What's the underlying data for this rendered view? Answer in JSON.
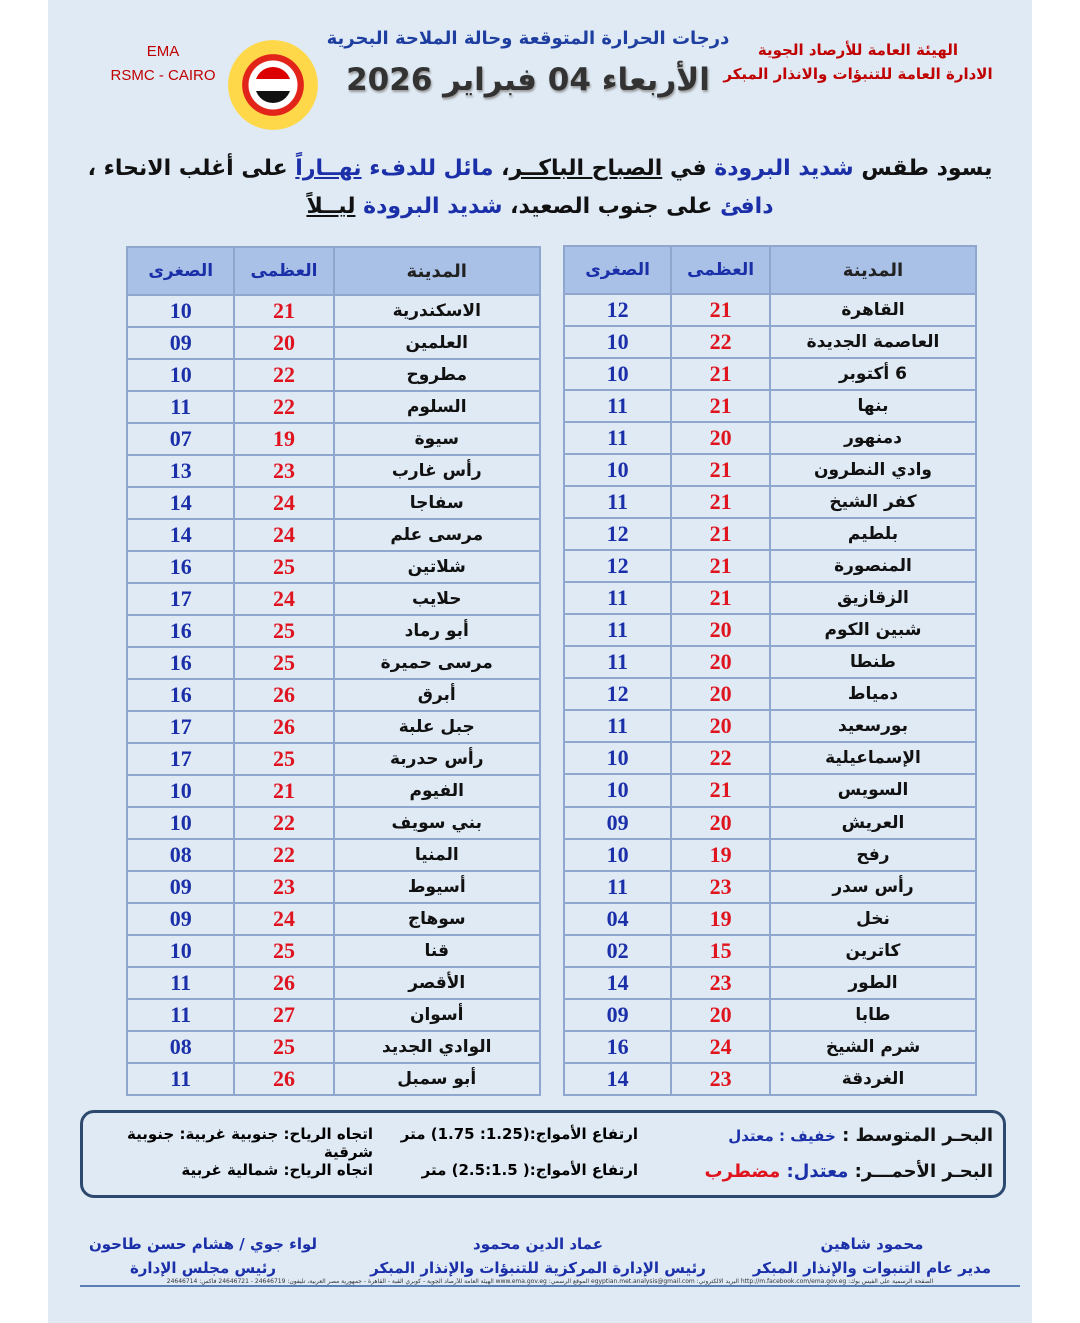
{
  "header": {
    "ema": "EMA",
    "rsmc": "RSMC - CAIRO",
    "title": "درجات الحرارة المتوقعة وحالة الملاحة البحرية",
    "date": "الأربعاء 04 فبراير 2026",
    "org1": "الهيئة العامة للأرصاد الجوية",
    "org2": "الادارة العامة للتنبؤات والانذار المبكر"
  },
  "summary": {
    "p1": "يسود طقس ",
    "p2": "شديد البرودة",
    "p3": " في ",
    "p4": "الصباح الباكــر",
    "p5": "، ",
    "p6": "مائل للدفء",
    "p7": " ",
    "p8": "نهــاراً",
    "p9": " على أغلب الانحاء ،",
    "p10": "دافئ",
    "p11": " على جنوب الصعيد، ",
    "p12": "شديد البرودة",
    "p13": " ",
    "p14": "ليــلاً"
  },
  "columns": {
    "city": "المدينة",
    "max": "العظمى",
    "min": "الصغرى"
  },
  "table_right": [
    [
      "القاهرة",
      "21",
      "12"
    ],
    [
      "العاصمة الجديدة",
      "22",
      "10"
    ],
    [
      "6 أكتوبر",
      "21",
      "10"
    ],
    [
      "بنها",
      "21",
      "11"
    ],
    [
      "دمنهور",
      "20",
      "11"
    ],
    [
      "وادي النطرون",
      "21",
      "10"
    ],
    [
      "كفر الشيخ",
      "21",
      "11"
    ],
    [
      "بلطيم",
      "21",
      "12"
    ],
    [
      "المنصورة",
      "21",
      "12"
    ],
    [
      "الزقازيق",
      "21",
      "11"
    ],
    [
      "شبين الكوم",
      "20",
      "11"
    ],
    [
      "طنطا",
      "20",
      "11"
    ],
    [
      "دمياط",
      "20",
      "12"
    ],
    [
      "بورسعيد",
      "20",
      "11"
    ],
    [
      "الإسماعيلية",
      "22",
      "10"
    ],
    [
      "السويس",
      "21",
      "10"
    ],
    [
      "العريش",
      "20",
      "09"
    ],
    [
      "رفح",
      "19",
      "10"
    ],
    [
      "رأس سدر",
      "23",
      "11"
    ],
    [
      "نخل",
      "19",
      "04"
    ],
    [
      "كاترين",
      "15",
      "02"
    ],
    [
      "الطور",
      "23",
      "14"
    ],
    [
      "طابا",
      "20",
      "09"
    ],
    [
      "شرم الشيخ",
      "24",
      "16"
    ],
    [
      "الغردقة",
      "23",
      "14"
    ]
  ],
  "table_left": [
    [
      "الاسكندرية",
      "21",
      "10"
    ],
    [
      "العلمين",
      "20",
      "09"
    ],
    [
      "مطروح",
      "22",
      "10"
    ],
    [
      "السلوم",
      "22",
      "11"
    ],
    [
      "سيوة",
      "19",
      "07"
    ],
    [
      "رأس غارب",
      "23",
      "13"
    ],
    [
      "سفاجا",
      "24",
      "14"
    ],
    [
      "مرسى علم",
      "24",
      "14"
    ],
    [
      "شلاتين",
      "25",
      "16"
    ],
    [
      "حلايب",
      "24",
      "17"
    ],
    [
      "أبو رماد",
      "25",
      "16"
    ],
    [
      "مرسى حميرة",
      "25",
      "16"
    ],
    [
      "أبرق",
      "26",
      "16"
    ],
    [
      "جبل علبة",
      "26",
      "17"
    ],
    [
      "رأس حدربة",
      "25",
      "17"
    ],
    [
      "الفيوم",
      "21",
      "10"
    ],
    [
      "بني سويف",
      "22",
      "10"
    ],
    [
      "المنيا",
      "22",
      "08"
    ],
    [
      "أسيوط",
      "23",
      "09"
    ],
    [
      "سوهاج",
      "24",
      "09"
    ],
    [
      "قنا",
      "25",
      "10"
    ],
    [
      "الأقصر",
      "26",
      "11"
    ],
    [
      "أسوان",
      "27",
      "11"
    ],
    [
      "الوادي الجديد",
      "25",
      "08"
    ],
    [
      "أبو سمبل",
      "26",
      "11"
    ]
  ],
  "sea": {
    "med": {
      "name": "البحـر المتوسط : ",
      "state1": "خفيف : ",
      "state2": "معتدل",
      "waves": "ارتفاع الأمواج:(1.25: 1.75) متر",
      "wind": "اتجاه الرياح: جنوبية غربية: جنوبية شرقية"
    },
    "red": {
      "name": "البحـر الأحمـــر: ",
      "state1": "معتدل: ",
      "state2": "مضطرب",
      "waves": "ارتفاع الأمواج:( 2.5:1.5) متر",
      "wind": "اتجاه الرياح: شمالية غربية"
    }
  },
  "signatures": [
    {
      "name": "محمود شاهين",
      "role": "مدير عام التنبوات والإنذار المبكر"
    },
    {
      "name": "عماد الدين محمود",
      "role": "رئيس الإدارة المركزية للتنبؤات والإنذار المبكر"
    },
    {
      "name": "لواء جوي / هشام حسن طاحون",
      "role": "رئيس مجلس الإدارة"
    }
  ],
  "footer": "الصفحة الرسمية على الفيس بوك: http://m.facebook.com/ema.gov.eg البريد الالكتروني: egyptian.met.analysis@gmail.com الموقع الرسمي: www.ema.gov.eg الهيئة العامة للأرصاد الجوية - كوبري القبة - القاهرة - جمهورية مصر العربية، تليفون: 24646719 - 24646721 فاكس: 24646714"
}
